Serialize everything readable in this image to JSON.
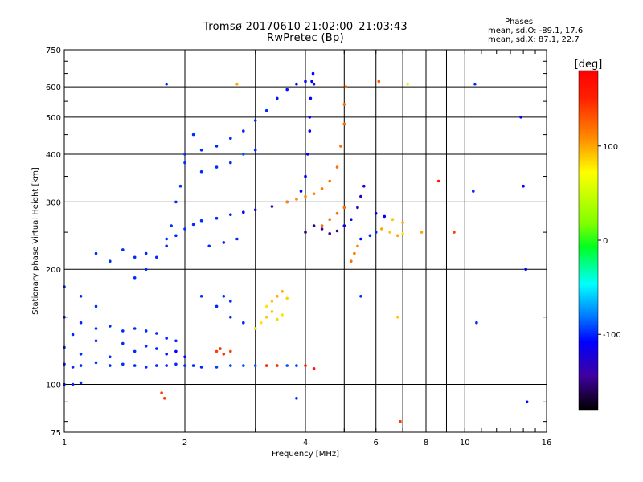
{
  "header": {
    "title_line1": "Tromsø 20170610 21:02:00–21:03:43",
    "title_line2": "RwPretec (Bp)",
    "stats_heading": "Phases",
    "stats_o": "mean, sd,O: -89.1, 17.6",
    "stats_x": "mean, sd,X: 87.1, 22.7"
  },
  "chart_data": {
    "type": "scatter",
    "title": "Tromsø 20170610 21:02:00–21:03:43",
    "subtitle": "RwPretec (Bp)",
    "xlabel": "Frequency [MHz]",
    "ylabel": "Stationary phase Virtual Height [km]",
    "xscale": "log",
    "yscale": "log",
    "xlim": [
      1,
      16
    ],
    "ylim": [
      75,
      750
    ],
    "x_ticks": [
      1,
      2,
      4,
      6,
      8,
      10,
      16
    ],
    "x_minor_ticks": [
      3,
      5,
      7,
      9
    ],
    "y_ticks": [
      75,
      100,
      200,
      300,
      400,
      500,
      600,
      750
    ],
    "grid": true,
    "colorbar": {
      "label": "[deg]",
      "range": [
        -180,
        180
      ],
      "ticks": [
        100,
        0,
        -100
      ]
    },
    "traces": [
      {
        "x": [
          1.0,
          1.05,
          1.1,
          1.2,
          1.3,
          1.4,
          1.5,
          1.6,
          1.7,
          1.8,
          1.9,
          2.0,
          2.1,
          2.2,
          2.4,
          2.6,
          2.8,
          3.0,
          3.2,
          3.4,
          3.6,
          3.8,
          4.0
        ],
        "y": [
          113,
          111,
          112,
          114,
          112,
          113,
          112,
          111,
          112,
          112,
          113,
          112,
          112,
          111,
          111,
          112,
          112,
          112,
          112,
          112,
          112,
          112,
          112
        ],
        "phase": [
          -100,
          -100,
          -100,
          -100,
          -100,
          -100,
          -100,
          -100,
          -100,
          -100,
          -100,
          -100,
          -100,
          -100,
          -95,
          -95,
          -90,
          -90,
          150,
          150,
          -90,
          -95,
          160
        ]
      },
      {
        "x": [
          1.0,
          1.05,
          1.1,
          1.2,
          1.3,
          1.4,
          1.5,
          1.6,
          1.7,
          1.8,
          1.9,
          2.0
        ],
        "y": [
          125,
          135,
          120,
          130,
          118,
          128,
          122,
          126,
          124,
          120,
          122,
          118
        ],
        "phase": [
          -100,
          -100,
          -100,
          -100,
          -100,
          -100,
          -100,
          -100,
          -100,
          -105,
          -110,
          -110
        ]
      },
      {
        "x": [
          1.0,
          1.1,
          1.2,
          1.3,
          1.4,
          1.5,
          1.6,
          1.7,
          1.8,
          1.9
        ],
        "y": [
          150,
          145,
          140,
          142,
          138,
          140,
          138,
          136,
          132,
          130
        ],
        "phase": [
          -100,
          -100,
          -100,
          -100,
          -100,
          -100,
          -100,
          -100,
          -100,
          -100
        ]
      },
      {
        "x": [
          1.0,
          1.1,
          1.2
        ],
        "y": [
          180,
          170,
          160
        ],
        "phase": [
          -100,
          -100,
          -100
        ]
      },
      {
        "x": [
          1.0,
          1.05,
          1.1
        ],
        "y": [
          100,
          100,
          101
        ],
        "phase": [
          -100,
          -100,
          -100
        ]
      },
      {
        "x": [
          1.2,
          1.3,
          1.4,
          1.5,
          1.6
        ],
        "y": [
          220,
          210,
          225,
          215,
          220
        ],
        "phase": [
          -100,
          -100,
          -100,
          -100,
          -100
        ]
      },
      {
        "x": [
          1.5,
          1.6,
          1.7,
          1.8,
          1.9,
          2.0,
          2.1,
          2.2,
          2.4,
          2.6,
          2.8,
          3.0,
          3.3,
          3.6,
          3.9,
          4.0,
          4.05,
          4.1
        ],
        "y": [
          190,
          200,
          215,
          230,
          245,
          255,
          262,
          268,
          272,
          278,
          282,
          286,
          292,
          300,
          320,
          350,
          400,
          460
        ],
        "phase": [
          -100,
          -100,
          -100,
          -100,
          -100,
          -100,
          -100,
          -100,
          -100,
          -100,
          -110,
          -120,
          -130,
          -120,
          -110,
          -110,
          -110,
          -110
        ]
      },
      {
        "x": [
          4.1,
          4.12,
          4.15,
          4.18
        ],
        "y": [
          500,
          560,
          620,
          650
        ],
        "phase": [
          -110,
          -110,
          -110,
          -110
        ]
      },
      {
        "x": [
          1.8,
          1.85,
          1.9,
          1.95,
          2.0
        ],
        "y": [
          240,
          260,
          300,
          330,
          380
        ],
        "phase": [
          -100,
          -100,
          -100,
          -100,
          -100
        ]
      },
      {
        "x": [
          2.0,
          2.2,
          2.4,
          2.6,
          2.8,
          3.0,
          3.2,
          3.4,
          3.6,
          3.8,
          4.0
        ],
        "y": [
          400,
          410,
          420,
          440,
          460,
          490,
          520,
          560,
          590,
          610,
          620
        ],
        "phase": [
          -100,
          -100,
          -100,
          -100,
          -100,
          -100,
          -100,
          -105,
          -105,
          -110,
          -110
        ]
      },
      {
        "x": [
          2.2,
          2.4,
          2.6,
          2.8,
          3.0
        ],
        "y": [
          360,
          370,
          380,
          400,
          410
        ],
        "phase": [
          -100,
          -100,
          -100,
          -90,
          -100
        ]
      },
      {
        "x": [
          2.3,
          2.5,
          2.7
        ],
        "y": [
          230,
          235,
          240
        ],
        "phase": [
          -100,
          -100,
          -100
        ]
      },
      {
        "x": [
          2.2,
          2.4,
          2.6,
          2.8,
          3.0
        ],
        "y": [
          170,
          160,
          150,
          145,
          140
        ],
        "phase": [
          -100,
          -100,
          -100,
          -100,
          -100
        ]
      },
      {
        "x": [
          2.4,
          2.5,
          2.6
        ],
        "y": [
          160,
          170,
          165
        ],
        "phase": [
          -100,
          -100,
          -100
        ]
      },
      {
        "x": [
          2.4,
          2.45,
          2.5,
          2.6
        ],
        "y": [
          122,
          124,
          120,
          122
        ],
        "phase": [
          140,
          150,
          145,
          140
        ]
      },
      {
        "x": [
          3.0,
          3.1,
          3.2,
          3.3,
          3.4,
          3.5
        ],
        "y": [
          140,
          145,
          150,
          155,
          148,
          152
        ],
        "phase": [
          80,
          80,
          90,
          90,
          85,
          80
        ]
      },
      {
        "x": [
          3.2,
          3.3,
          3.4,
          3.5,
          3.6
        ],
        "y": [
          160,
          165,
          170,
          175,
          168
        ],
        "phase": [
          80,
          90,
          100,
          95,
          85
        ]
      },
      {
        "x": [
          3.6,
          3.8,
          4.0,
          4.2,
          4.4,
          4.6,
          4.8,
          4.9,
          5.0,
          5.0,
          5.05
        ],
        "y": [
          300,
          305,
          310,
          315,
          325,
          340,
          370,
          420,
          480,
          540,
          600
        ],
        "phase": [
          110,
          110,
          110,
          110,
          115,
          120,
          120,
          120,
          120,
          120,
          120
        ]
      },
      {
        "x": [
          4.0,
          4.2,
          4.4,
          4.6,
          4.8
        ],
        "y": [
          250,
          260,
          255,
          248,
          252
        ],
        "phase": [
          -150,
          -150,
          -140,
          -140,
          -150
        ]
      },
      {
        "x": [
          4.4,
          4.6,
          4.8,
          5.0
        ],
        "y": [
          260,
          270,
          280,
          290
        ],
        "phase": [
          120,
          115,
          120,
          120
        ]
      },
      {
        "x": [
          5.0,
          5.2,
          5.4,
          5.5,
          5.6
        ],
        "y": [
          260,
          270,
          290,
          310,
          330
        ],
        "phase": [
          -120,
          -120,
          -130,
          -130,
          -120
        ]
      },
      {
        "x": [
          5.2,
          5.3,
          5.4
        ],
        "y": [
          210,
          220,
          230
        ],
        "phase": [
          120,
          115,
          110
        ]
      },
      {
        "x": [
          5.5,
          5.8,
          6.0,
          6.2,
          6.5,
          6.8,
          7.0
        ],
        "y": [
          240,
          245,
          250,
          255,
          250,
          245,
          248
        ],
        "phase": [
          -110,
          -100,
          -100,
          100,
          90,
          100,
          80
        ]
      },
      {
        "x": [
          6.0,
          6.3,
          6.6,
          7.0
        ],
        "y": [
          280,
          275,
          270,
          265
        ],
        "phase": [
          -110,
          -110,
          90,
          100
        ]
      },
      {
        "x": [
          1.8,
          2.1,
          2.7,
          4.2,
          5.5,
          6.1,
          6.8,
          7.2,
          7.8,
          8.6,
          9.4,
          10.5,
          10.6,
          10.7,
          13.8,
          14.0,
          14.2,
          14.3
        ],
        "y": [
          610,
          450,
          610,
          610,
          170,
          620,
          150,
          610,
          250,
          340,
          250,
          320,
          610,
          145,
          500,
          330,
          200,
          90
        ],
        "phase": [
          -100,
          -100,
          100,
          -110,
          -100,
          130,
          90,
          50,
          100,
          160,
          140,
          -100,
          -100,
          -100,
          -110,
          -110,
          -110,
          -110
        ]
      },
      {
        "x": [
          1.75,
          1.78,
          6.9,
          3.8,
          4.2
        ],
        "y": [
          95,
          92,
          80,
          92,
          110
        ],
        "phase": [
          140,
          140,
          140,
          -100,
          160
        ]
      }
    ]
  }
}
